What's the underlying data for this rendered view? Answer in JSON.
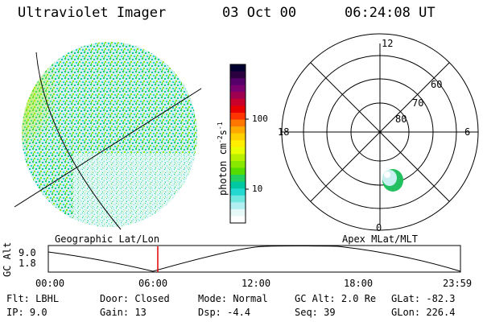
{
  "header": {
    "instrument": "Ultraviolet Imager",
    "date": "03 Oct 00",
    "time": "06:24:08 UT"
  },
  "colorbar": {
    "unit_label": "photon cm",
    "unit_exp1": "-2",
    "unit_s": "s",
    "unit_exp2": "-1",
    "ticks": [
      "100",
      "10"
    ],
    "colors": [
      "#000030",
      "#2a0040",
      "#55006a",
      "#7a0070",
      "#a00050",
      "#c8002a",
      "#e80000",
      "#ff3300",
      "#ff7700",
      "#ffaa00",
      "#ffd000",
      "#ffee00",
      "#e8ff00",
      "#b8f000",
      "#88e800",
      "#55dd00",
      "#22d060",
      "#00c8a0",
      "#22d8d0",
      "#70e8e0",
      "#b0f0f0",
      "#e6f8f8",
      "#ffffff"
    ]
  },
  "polar": {
    "mlt_labels": {
      "top": "12",
      "left": "18",
      "right": "6",
      "bottom": "0"
    },
    "lat_labels": [
      "60",
      "70",
      "80"
    ]
  },
  "footer": {
    "left_title": "Geographic Lat/Lon",
    "right_title": "Apex MLat/MLT",
    "axis_title": "GC Alt",
    "alt_ticks": [
      "9.0",
      "1.8"
    ],
    "time_ticks": [
      "00:00",
      "06:00",
      "12:00",
      "18:00",
      "23:59"
    ]
  },
  "info": {
    "flt_label": "Flt:",
    "flt_value": "LBHL",
    "ip_label": "IP:",
    "ip_value": "9.0",
    "door_label": "Door:",
    "door_value": "Closed",
    "gain_label": "Gain:",
    "gain_value": "13",
    "mode_label": "Mode:",
    "mode_value": "Normal",
    "dsp_label": "Dsp:",
    "dsp_value": "-4.4",
    "gcalt_label": "GC Alt:",
    "gcalt_value": "2.0 Re",
    "seq_label": "Seq:",
    "seq_value": "39",
    "glat_label": "GLat:",
    "glat_value": "-82.3",
    "glon_label": "GLon:",
    "glon_value": "226.4"
  },
  "colors": {
    "marker": "#dd0000",
    "polar_blob_edge": "#22c060",
    "polar_blob_core": "#c8f0f0"
  }
}
